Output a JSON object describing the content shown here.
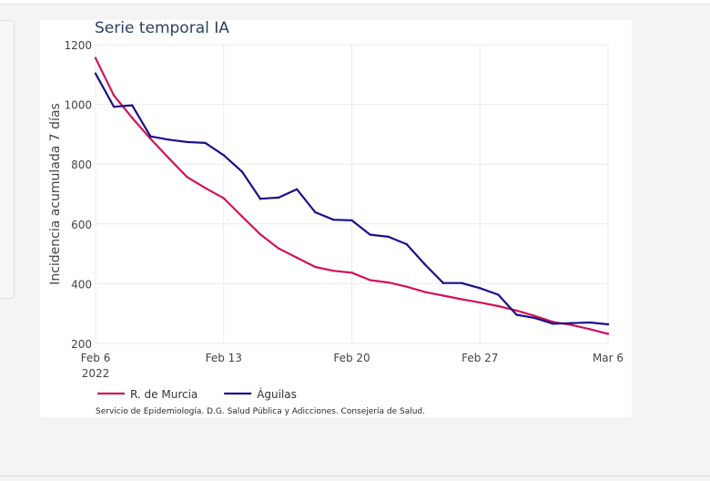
{
  "chart_data": {
    "type": "line",
    "title": "Serie temporal IA",
    "ylabel": "Incidencia acumulada 7 días",
    "xlabel": "",
    "x_start": "2022-02-06",
    "x_end": "2022-03-06",
    "ylim": [
      200,
      1200
    ],
    "yticks": [
      {
        "value": 200,
        "label": "200"
      },
      {
        "value": 400,
        "label": "400"
      },
      {
        "value": 600,
        "label": "600"
      },
      {
        "value": 800,
        "label": "800"
      },
      {
        "value": 1000,
        "label": "1000"
      },
      {
        "value": 1200,
        "label": "1200"
      }
    ],
    "xticks": [
      {
        "date": "2022-02-06",
        "label": "Feb 6",
        "sublabel": "2022"
      },
      {
        "date": "2022-02-13",
        "label": "Feb 13"
      },
      {
        "date": "2022-02-20",
        "label": "Feb 20"
      },
      {
        "date": "2022-02-27",
        "label": "Feb 27"
      },
      {
        "date": "2022-03-06",
        "label": "Mar 6"
      }
    ],
    "grid": true,
    "legend_position": "bottom-left",
    "series": [
      {
        "name": "R. de Murcia",
        "color": "#d0125c",
        "points": [
          {
            "x": "2022-02-06",
            "y": 1155
          },
          {
            "x": "2022-02-07",
            "y": 1030
          },
          {
            "x": "2022-02-08",
            "y": 955
          },
          {
            "x": "2022-02-09",
            "y": 885
          },
          {
            "x": "2022-02-10",
            "y": 820
          },
          {
            "x": "2022-02-11",
            "y": 757
          },
          {
            "x": "2022-02-12",
            "y": 720
          },
          {
            "x": "2022-02-13",
            "y": 686
          },
          {
            "x": "2022-02-14",
            "y": 625
          },
          {
            "x": "2022-02-15",
            "y": 565
          },
          {
            "x": "2022-02-16",
            "y": 518
          },
          {
            "x": "2022-02-17",
            "y": 487
          },
          {
            "x": "2022-02-18",
            "y": 456
          },
          {
            "x": "2022-02-19",
            "y": 443
          },
          {
            "x": "2022-02-20",
            "y": 437
          },
          {
            "x": "2022-02-21",
            "y": 412
          },
          {
            "x": "2022-02-22",
            "y": 404
          },
          {
            "x": "2022-02-23",
            "y": 390
          },
          {
            "x": "2022-02-24",
            "y": 372
          },
          {
            "x": "2022-02-25",
            "y": 360
          },
          {
            "x": "2022-02-26",
            "y": 348
          },
          {
            "x": "2022-02-27",
            "y": 337
          },
          {
            "x": "2022-02-28",
            "y": 325
          },
          {
            "x": "2022-03-01",
            "y": 310
          },
          {
            "x": "2022-03-02",
            "y": 292
          },
          {
            "x": "2022-03-03",
            "y": 272
          },
          {
            "x": "2022-03-04",
            "y": 262
          },
          {
            "x": "2022-03-05",
            "y": 248
          },
          {
            "x": "2022-03-06",
            "y": 232
          }
        ]
      },
      {
        "name": "Águilas",
        "color": "#1a118a",
        "points": [
          {
            "x": "2022-02-06",
            "y": 1103
          },
          {
            "x": "2022-02-07",
            "y": 992
          },
          {
            "x": "2022-02-08",
            "y": 997
          },
          {
            "x": "2022-02-09",
            "y": 893
          },
          {
            "x": "2022-02-10",
            "y": 882
          },
          {
            "x": "2022-02-11",
            "y": 874
          },
          {
            "x": "2022-02-12",
            "y": 871
          },
          {
            "x": "2022-02-13",
            "y": 830
          },
          {
            "x": "2022-02-14",
            "y": 775
          },
          {
            "x": "2022-02-15",
            "y": 684
          },
          {
            "x": "2022-02-16",
            "y": 688
          },
          {
            "x": "2022-02-17",
            "y": 716
          },
          {
            "x": "2022-02-18",
            "y": 639
          },
          {
            "x": "2022-02-19",
            "y": 614
          },
          {
            "x": "2022-02-20",
            "y": 612
          },
          {
            "x": "2022-02-21",
            "y": 564
          },
          {
            "x": "2022-02-22",
            "y": 557
          },
          {
            "x": "2022-02-23",
            "y": 532
          },
          {
            "x": "2022-02-24",
            "y": 464
          },
          {
            "x": "2022-02-25",
            "y": 402
          },
          {
            "x": "2022-02-26",
            "y": 402
          },
          {
            "x": "2022-02-27",
            "y": 385
          },
          {
            "x": "2022-02-28",
            "y": 363
          },
          {
            "x": "2022-03-01",
            "y": 296
          },
          {
            "x": "2022-03-02",
            "y": 285
          },
          {
            "x": "2022-03-03",
            "y": 266
          },
          {
            "x": "2022-03-04",
            "y": 268
          },
          {
            "x": "2022-03-05",
            "y": 270
          },
          {
            "x": "2022-03-06",
            "y": 264
          }
        ]
      }
    ],
    "annotation": "Servicio de Epidemiología. D.G. Salud Pública y Adicciones. Consejería de Salud."
  }
}
